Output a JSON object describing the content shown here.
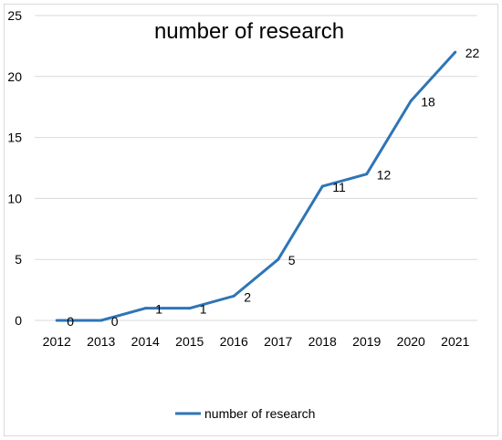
{
  "chart_data": {
    "type": "line",
    "title": "number of research",
    "xlabel": "",
    "ylabel": "",
    "x": [
      "2012",
      "2013",
      "2014",
      "2015",
      "2016",
      "2017",
      "2018",
      "2019",
      "2020",
      "2021"
    ],
    "series": [
      {
        "name": "number of research",
        "values": [
          0,
          0,
          1,
          1,
          2,
          5,
          11,
          12,
          18,
          22
        ],
        "color": "#2E75B6"
      }
    ],
    "ylim": [
      0,
      25
    ],
    "yticks": [
      0,
      5,
      10,
      15,
      20,
      25
    ],
    "grid": true,
    "legend": "bottom",
    "data_labels": true
  }
}
